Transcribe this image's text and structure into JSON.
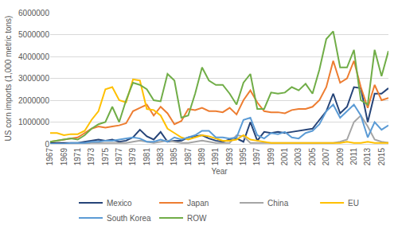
{
  "chart_data": {
    "type": "line",
    "x_label": "Year",
    "y_label": "US corn imports (1,000 metric tons)",
    "x": [
      1967,
      1968,
      1969,
      1970,
      1971,
      1972,
      1973,
      1974,
      1975,
      1976,
      1977,
      1978,
      1979,
      1980,
      1981,
      1982,
      1983,
      1984,
      1985,
      1986,
      1987,
      1988,
      1989,
      1990,
      1991,
      1992,
      1993,
      1994,
      1995,
      1996,
      1997,
      1998,
      1999,
      2000,
      2001,
      2002,
      2003,
      2004,
      2005,
      2006,
      2007,
      2008,
      2009,
      2010,
      2011,
      2012,
      2013,
      2014,
      2015,
      2016
    ],
    "xlim": [
      1967,
      2016
    ],
    "xticks": [
      1967,
      1969,
      1971,
      1973,
      1975,
      1977,
      1979,
      1981,
      1983,
      1985,
      1987,
      1989,
      1991,
      1993,
      1995,
      1997,
      1999,
      2001,
      2003,
      2005,
      2007,
      2009,
      2011,
      2013,
      2015
    ],
    "ylim": [
      0,
      6000000
    ],
    "yticks": [
      0,
      1000000,
      2000000,
      3000000,
      4000000,
      5000000,
      6000000
    ],
    "grid": true,
    "legend": "bottom",
    "series": [
      {
        "name": "Mexico",
        "color": "#264478",
        "values": [
          50000,
          50000,
          50000,
          50000,
          50000,
          100000,
          150000,
          200000,
          150000,
          200000,
          100000,
          150000,
          300000,
          650000,
          350000,
          200000,
          550000,
          100000,
          150000,
          150000,
          300000,
          350000,
          400000,
          250000,
          150000,
          100000,
          200000,
          250000,
          100000,
          1000000,
          150000,
          550000,
          500000,
          550000,
          500000,
          550000,
          600000,
          650000,
          700000,
          1100000,
          1500000,
          2300000,
          1400000,
          1700000,
          2600000,
          2550000,
          1000000,
          2300000,
          2300000,
          2550000
        ]
      },
      {
        "name": "Japan",
        "color": "#ed7d31",
        "values": [
          100000,
          150000,
          200000,
          250000,
          300000,
          500000,
          700000,
          800000,
          750000,
          800000,
          850000,
          950000,
          1500000,
          1650000,
          1800000,
          1300000,
          1700000,
          1400000,
          900000,
          1050000,
          1600000,
          1550000,
          1650000,
          1500000,
          1500000,
          1450000,
          1650000,
          1350000,
          2000000,
          2450000,
          1900000,
          1500000,
          1450000,
          1450000,
          1400000,
          1550000,
          1600000,
          1600000,
          1700000,
          2000000,
          2600000,
          3800000,
          2800000,
          3000000,
          3800000,
          2600000,
          1650000,
          2700000,
          2000000,
          2100000
        ]
      },
      {
        "name": "China",
        "color": "#a5a5a5",
        "values": [
          0,
          0,
          0,
          0,
          0,
          0,
          50000,
          50000,
          50000,
          50000,
          50000,
          50000,
          100000,
          150000,
          100000,
          50000,
          100000,
          150000,
          100000,
          50000,
          50000,
          100000,
          150000,
          100000,
          50000,
          50000,
          50000,
          400000,
          350000,
          50000,
          50000,
          50000,
          50000,
          50000,
          50000,
          50000,
          50000,
          50000,
          50000,
          50000,
          50000,
          50000,
          100000,
          200000,
          1000000,
          1300000,
          800000,
          200000,
          100000,
          50000
        ]
      },
      {
        "name": "EU",
        "color": "#ffc000",
        "values": [
          500000,
          500000,
          400000,
          450000,
          450000,
          600000,
          1100000,
          1500000,
          2500000,
          2600000,
          2000000,
          1900000,
          2950000,
          2900000,
          1600000,
          1550000,
          1300000,
          700000,
          500000,
          300000,
          200000,
          300000,
          400000,
          350000,
          250000,
          150000,
          150000,
          200000,
          400000,
          200000,
          150000,
          100000,
          50000,
          50000,
          50000,
          50000,
          50000,
          50000,
          50000,
          50000,
          50000,
          50000,
          50000,
          100000,
          50000,
          50000,
          100000,
          50000,
          50000,
          50000
        ]
      },
      {
        "name": "South Korea",
        "color": "#5b9bd5",
        "values": [
          0,
          0,
          0,
          50000,
          50000,
          50000,
          100000,
          100000,
          150000,
          150000,
          200000,
          250000,
          300000,
          250000,
          100000,
          100000,
          200000,
          100000,
          300000,
          200000,
          300000,
          400000,
          600000,
          600000,
          300000,
          300000,
          250000,
          300000,
          1100000,
          1200000,
          400000,
          250000,
          500000,
          450000,
          550000,
          300000,
          250000,
          500000,
          600000,
          900000,
          1500000,
          1800000,
          1200000,
          1500000,
          1800000,
          1300000,
          300000,
          1000000,
          650000,
          850000
        ]
      },
      {
        "name": "ROW",
        "color": "#70ad47",
        "values": [
          100000,
          150000,
          200000,
          250000,
          200000,
          400000,
          700000,
          900000,
          1000000,
          1700000,
          1000000,
          2000000,
          2800000,
          2700000,
          2500000,
          2000000,
          1950000,
          3200000,
          2900000,
          1200000,
          1300000,
          2300000,
          3500000,
          2900000,
          2700000,
          2700000,
          2300000,
          1800000,
          2800000,
          3200000,
          1600000,
          1600000,
          2350000,
          2300000,
          2350000,
          2600000,
          2450000,
          2750000,
          2300000,
          3400000,
          4800000,
          5150000,
          3500000,
          3500000,
          4300000,
          2000000,
          1800000,
          4300000,
          3100000,
          4250000
        ]
      }
    ]
  }
}
